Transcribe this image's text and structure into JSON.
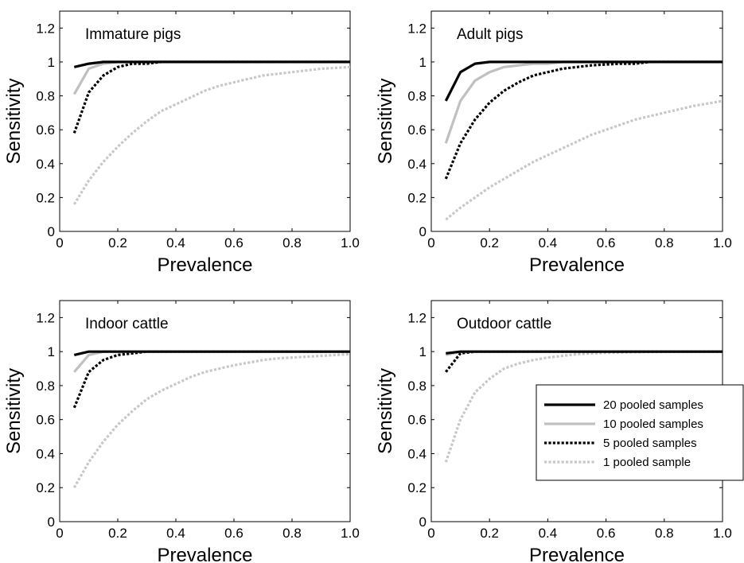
{
  "chart_data": [
    {
      "type": "line",
      "title": "Immature pigs",
      "xlabel": "Prevalence",
      "ylabel": "Sensitivity",
      "xlim": [
        0,
        1
      ],
      "ylim": [
        0,
        1.3
      ],
      "xticks": [
        "0",
        "0.2",
        "0.4",
        "0.6",
        "0.8",
        "1.0"
      ],
      "yticks": [
        "0",
        "0.2",
        "0.4",
        "0.6",
        "0.8",
        "1",
        "1.2"
      ],
      "x": [
        0.05,
        0.1,
        0.15,
        0.2,
        0.25,
        0.3,
        0.35,
        0.4,
        0.45,
        0.5,
        0.55,
        0.6,
        0.65,
        0.7,
        0.75,
        0.8,
        0.85,
        0.9,
        0.95,
        1.0
      ],
      "series": [
        {
          "name": "20 pooled samples",
          "values": [
            0.97,
            0.99,
            1.0,
            1.0,
            1.0,
            1.0,
            1.0,
            1.0,
            1.0,
            1.0,
            1.0,
            1.0,
            1.0,
            1.0,
            1.0,
            1.0,
            1.0,
            1.0,
            1.0,
            1.0
          ]
        },
        {
          "name": "10 pooled samples",
          "values": [
            0.81,
            0.96,
            0.99,
            1.0,
            1.0,
            1.0,
            1.0,
            1.0,
            1.0,
            1.0,
            1.0,
            1.0,
            1.0,
            1.0,
            1.0,
            1.0,
            1.0,
            1.0,
            1.0,
            1.0
          ]
        },
        {
          "name": "5 pooled samples",
          "values": [
            0.58,
            0.82,
            0.92,
            0.97,
            0.99,
            0.99,
            1.0,
            1.0,
            1.0,
            1.0,
            1.0,
            1.0,
            1.0,
            1.0,
            1.0,
            1.0,
            1.0,
            1.0,
            1.0,
            1.0
          ]
        },
        {
          "name": "1 pooled sample",
          "values": [
            0.16,
            0.3,
            0.41,
            0.5,
            0.58,
            0.65,
            0.71,
            0.75,
            0.79,
            0.83,
            0.86,
            0.88,
            0.9,
            0.92,
            0.93,
            0.94,
            0.95,
            0.96,
            0.965,
            0.97
          ]
        }
      ]
    },
    {
      "type": "line",
      "title": "Adult pigs",
      "xlabel": "Prevalence",
      "ylabel": "Sensitivity",
      "xlim": [
        0,
        1
      ],
      "ylim": [
        0,
        1.3
      ],
      "xticks": [
        "0",
        "0.2",
        "0.4",
        "0.6",
        "0.8",
        "1.0"
      ],
      "yticks": [
        "0",
        "0.2",
        "0.4",
        "0.6",
        "0.8",
        "1",
        "1.2"
      ],
      "x": [
        0.05,
        0.1,
        0.15,
        0.2,
        0.25,
        0.3,
        0.35,
        0.4,
        0.45,
        0.5,
        0.55,
        0.6,
        0.65,
        0.7,
        0.75,
        0.8,
        0.85,
        0.9,
        0.95,
        1.0
      ],
      "series": [
        {
          "name": "20 pooled samples",
          "values": [
            0.77,
            0.94,
            0.99,
            1.0,
            1.0,
            1.0,
            1.0,
            1.0,
            1.0,
            1.0,
            1.0,
            1.0,
            1.0,
            1.0,
            1.0,
            1.0,
            1.0,
            1.0,
            1.0,
            1.0
          ]
        },
        {
          "name": "10 pooled samples",
          "values": [
            0.52,
            0.77,
            0.89,
            0.94,
            0.97,
            0.98,
            0.99,
            0.99,
            1.0,
            1.0,
            1.0,
            1.0,
            1.0,
            1.0,
            1.0,
            1.0,
            1.0,
            1.0,
            1.0,
            1.0
          ]
        },
        {
          "name": "5 pooled samples",
          "values": [
            0.31,
            0.52,
            0.66,
            0.76,
            0.83,
            0.88,
            0.92,
            0.94,
            0.96,
            0.97,
            0.98,
            0.985,
            0.99,
            0.99,
            1.0,
            1.0,
            1.0,
            1.0,
            1.0,
            1.0
          ]
        },
        {
          "name": "1 pooled sample",
          "values": [
            0.07,
            0.14,
            0.2,
            0.26,
            0.31,
            0.36,
            0.41,
            0.45,
            0.49,
            0.53,
            0.57,
            0.6,
            0.63,
            0.66,
            0.68,
            0.7,
            0.72,
            0.74,
            0.755,
            0.77
          ]
        }
      ]
    },
    {
      "type": "line",
      "title": "Indoor cattle",
      "xlabel": "Prevalence",
      "ylabel": "Sensitivity",
      "xlim": [
        0,
        1
      ],
      "ylim": [
        0,
        1.3
      ],
      "xticks": [
        "0",
        "0.2",
        "0.4",
        "0.6",
        "0.8",
        "1.0"
      ],
      "yticks": [
        "0",
        "0.2",
        "0.4",
        "0.6",
        "0.8",
        "1",
        "1.2"
      ],
      "x": [
        0.05,
        0.1,
        0.15,
        0.2,
        0.25,
        0.3,
        0.35,
        0.4,
        0.45,
        0.5,
        0.55,
        0.6,
        0.65,
        0.7,
        0.75,
        0.8,
        0.85,
        0.9,
        0.95,
        1.0
      ],
      "series": [
        {
          "name": "20 pooled samples",
          "values": [
            0.98,
            1.0,
            1.0,
            1.0,
            1.0,
            1.0,
            1.0,
            1.0,
            1.0,
            1.0,
            1.0,
            1.0,
            1.0,
            1.0,
            1.0,
            1.0,
            1.0,
            1.0,
            1.0,
            1.0
          ]
        },
        {
          "name": "10 pooled samples",
          "values": [
            0.88,
            0.98,
            1.0,
            1.0,
            1.0,
            1.0,
            1.0,
            1.0,
            1.0,
            1.0,
            1.0,
            1.0,
            1.0,
            1.0,
            1.0,
            1.0,
            1.0,
            1.0,
            1.0,
            1.0
          ]
        },
        {
          "name": "5 pooled samples",
          "values": [
            0.67,
            0.88,
            0.95,
            0.98,
            0.99,
            1.0,
            1.0,
            1.0,
            1.0,
            1.0,
            1.0,
            1.0,
            1.0,
            1.0,
            1.0,
            1.0,
            1.0,
            1.0,
            1.0,
            1.0
          ]
        },
        {
          "name": "1 pooled sample",
          "values": [
            0.2,
            0.35,
            0.47,
            0.57,
            0.65,
            0.72,
            0.77,
            0.81,
            0.85,
            0.88,
            0.9,
            0.92,
            0.935,
            0.95,
            0.96,
            0.965,
            0.97,
            0.975,
            0.98,
            0.985
          ]
        }
      ]
    },
    {
      "type": "line",
      "title": "Outdoor cattle",
      "xlabel": "Prevalence",
      "ylabel": "Sensitivity",
      "xlim": [
        0,
        1
      ],
      "ylim": [
        0,
        1.3
      ],
      "xticks": [
        "0",
        "0.2",
        "0.4",
        "0.6",
        "0.8",
        "1.0"
      ],
      "yticks": [
        "0",
        "0.2",
        "0.4",
        "0.6",
        "0.8",
        "1",
        "1.2"
      ],
      "legend": "lower-right",
      "x": [
        0.05,
        0.1,
        0.15,
        0.2,
        0.25,
        0.3,
        0.35,
        0.4,
        0.45,
        0.5,
        0.55,
        0.6,
        0.65,
        0.7,
        0.75,
        0.8,
        0.85,
        0.9,
        0.95,
        1.0
      ],
      "series": [
        {
          "name": "20 pooled samples",
          "values": [
            0.99,
            1.0,
            1.0,
            1.0,
            1.0,
            1.0,
            1.0,
            1.0,
            1.0,
            1.0,
            1.0,
            1.0,
            1.0,
            1.0,
            1.0,
            1.0,
            1.0,
            1.0,
            1.0,
            1.0
          ]
        },
        {
          "name": "10 pooled samples",
          "values": [
            0.98,
            1.0,
            1.0,
            1.0,
            1.0,
            1.0,
            1.0,
            1.0,
            1.0,
            1.0,
            1.0,
            1.0,
            1.0,
            1.0,
            1.0,
            1.0,
            1.0,
            1.0,
            1.0,
            1.0
          ]
        },
        {
          "name": "5 pooled samples",
          "values": [
            0.88,
            0.99,
            1.0,
            1.0,
            1.0,
            1.0,
            1.0,
            1.0,
            1.0,
            1.0,
            1.0,
            1.0,
            1.0,
            1.0,
            1.0,
            1.0,
            1.0,
            1.0,
            1.0,
            1.0
          ]
        },
        {
          "name": "1 pooled sample",
          "values": [
            0.35,
            0.6,
            0.76,
            0.84,
            0.9,
            0.93,
            0.95,
            0.965,
            0.975,
            0.985,
            0.99,
            0.993,
            0.995,
            0.997,
            0.998,
            0.999,
            1.0,
            1.0,
            1.0,
            1.0
          ]
        }
      ]
    }
  ],
  "series_styles": [
    {
      "color": "#000000",
      "dash": "solid"
    },
    {
      "color": "#c0c0c0",
      "dash": "solid"
    },
    {
      "color": "#000000",
      "dash": "dotted"
    },
    {
      "color": "#c8c8c8",
      "dash": "dotted"
    }
  ]
}
